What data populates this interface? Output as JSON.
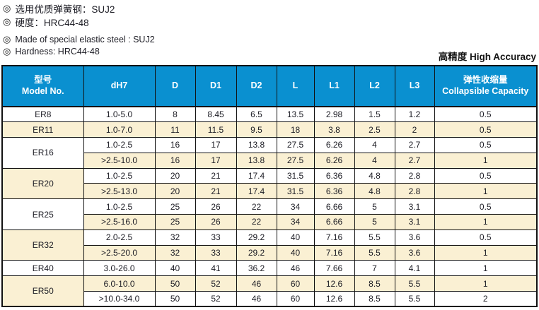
{
  "notes": {
    "bullet_icon": "◎",
    "lines": [
      {
        "text": "选用优质弹簧钢：SUJ2",
        "lang": "cn"
      },
      {
        "text": "硬度：HRC44-48",
        "lang": "cn"
      },
      {
        "text": "Made of special elastic steel : SUJ2",
        "lang": "en"
      },
      {
        "text": "Hardness: HRC44-48",
        "lang": "en"
      }
    ]
  },
  "accuracy_label": "高精度 High Accuracy",
  "colors": {
    "header_bg": "#0a90d0",
    "row_alt_bg": "#faf0d3",
    "row_bg": "#ffffff",
    "border": "#111111",
    "header_text": "#ffffff",
    "body_text": "#1c1c24"
  },
  "table": {
    "columns": [
      {
        "label_cn": "型号",
        "label_en": "Model No."
      },
      {
        "label": "dH7"
      },
      {
        "label": "D"
      },
      {
        "label": "D1"
      },
      {
        "label": "D2"
      },
      {
        "label": "L"
      },
      {
        "label": "L1"
      },
      {
        "label": "L2"
      },
      {
        "label": "L3"
      },
      {
        "label_cn": "弹性收缩量",
        "label_en": "Collapsible Capacity"
      }
    ],
    "groups": [
      {
        "model": "ER8",
        "rows": [
          [
            "1.0-5.0",
            "8",
            "8.45",
            "6.5",
            "13.5",
            "2.98",
            "1.5",
            "1.2",
            "0.5"
          ]
        ]
      },
      {
        "model": "ER11",
        "rows": [
          [
            "1.0-7.0",
            "11",
            "11.5",
            "9.5",
            "18",
            "3.8",
            "2.5",
            "2",
            "0.5"
          ]
        ]
      },
      {
        "model": "ER16",
        "rows": [
          [
            "1.0-2.5",
            "16",
            "17",
            "13.8",
            "27.5",
            "6.26",
            "4",
            "2.7",
            "0.5"
          ],
          [
            ">2.5-10.0",
            "16",
            "17",
            "13.8",
            "27.5",
            "6.26",
            "4",
            "2.7",
            "1"
          ]
        ]
      },
      {
        "model": "ER20",
        "rows": [
          [
            "1.0-2.5",
            "20",
            "21",
            "17.4",
            "31.5",
            "6.36",
            "4.8",
            "2.8",
            "0.5"
          ],
          [
            ">2.5-13.0",
            "20",
            "21",
            "17.4",
            "31.5",
            "6.36",
            "4.8",
            "2.8",
            "1"
          ]
        ]
      },
      {
        "model": "ER25",
        "rows": [
          [
            "1.0-2.5",
            "25",
            "26",
            "22",
            "34",
            "6.66",
            "5",
            "3.1",
            "0.5"
          ],
          [
            ">2.5-16.0",
            "25",
            "26",
            "22",
            "34",
            "6.66",
            "5",
            "3.1",
            "1"
          ]
        ]
      },
      {
        "model": "ER32",
        "rows": [
          [
            "2.0-2.5",
            "32",
            "33",
            "29.2",
            "40",
            "7.16",
            "5.5",
            "3.6",
            "0.5"
          ],
          [
            ">2.5-20.0",
            "32",
            "33",
            "29.2",
            "40",
            "7.16",
            "5.5",
            "3.6",
            "1"
          ]
        ]
      },
      {
        "model": "ER40",
        "rows": [
          [
            "3.0-26.0",
            "40",
            "41",
            "36.2",
            "46",
            "7.66",
            "7",
            "4.1",
            "1"
          ]
        ]
      },
      {
        "model": "ER50",
        "rows": [
          [
            "6.0-10.0",
            "50",
            "52",
            "46",
            "60",
            "12.6",
            "8.5",
            "5.5",
            "1"
          ],
          [
            ">10.0-34.0",
            "50",
            "52",
            "46",
            "60",
            "12.6",
            "8.5",
            "5.5",
            "2"
          ]
        ]
      }
    ]
  }
}
